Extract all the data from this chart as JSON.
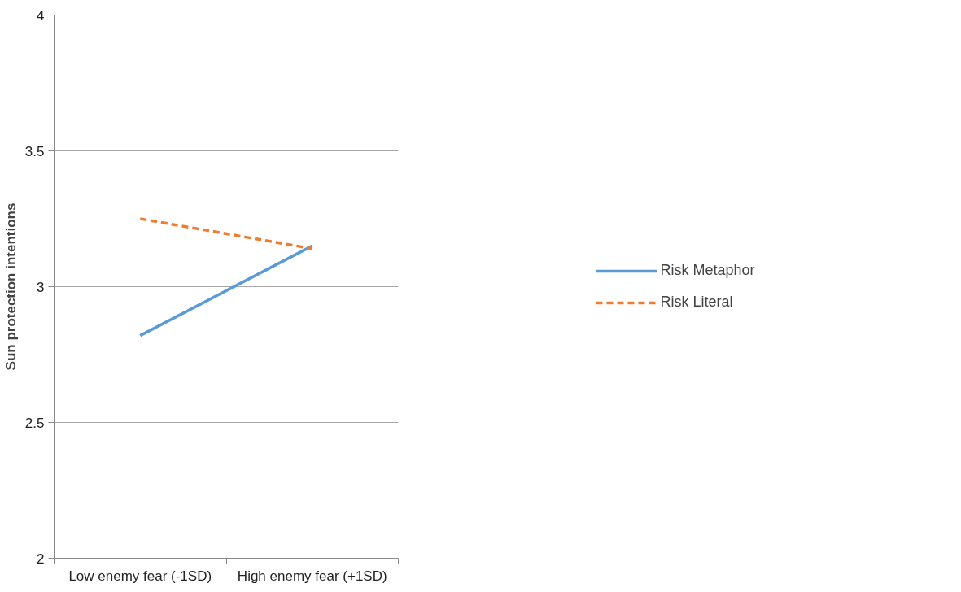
{
  "chart_data": {
    "type": "line",
    "ylabel": "Sun protection intentions",
    "categories": [
      "Low enemy fear (-1SD)",
      "High enemy fear (+1SD)"
    ],
    "series": [
      {
        "name": "Risk Metaphor",
        "color": "#5b9bd5",
        "values": [
          2.82,
          3.15
        ],
        "line_style": "solid"
      },
      {
        "name": "Risk Literal",
        "color": "#ed7d31",
        "values": [
          3.25,
          3.14
        ],
        "line_style": "dashed"
      }
    ],
    "ylim": [
      2,
      4
    ],
    "yticks": [
      2,
      2.5,
      3,
      3.5,
      4
    ],
    "grid": "y",
    "legend": "right",
    "marker": "none"
  }
}
